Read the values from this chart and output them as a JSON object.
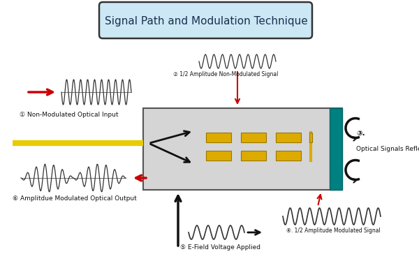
{
  "title": "Signal Path and Modulation Technique",
  "title_box_color": "#cde8f5",
  "title_box_edge": "#333333",
  "bg_color": "#ffffff",
  "labels": {
    "1": "Non-Modulated Optical Input",
    "2": "1/2 Amplitude Non-Modulated Signal",
    "3": "Optical Signals Reflected",
    "4": "1/2 Amplitude Modulated Signal",
    "5": "E-Field Voltage Applied",
    "6": "Amplitdue Modulated Optical Output"
  },
  "arrow_red": "#cc0000",
  "arrow_black": "#111111",
  "gold_color": "#ddaa00",
  "teal_color": "#008080",
  "gray_device": "#d5d5d5",
  "fiber_color": "#e8cc00"
}
